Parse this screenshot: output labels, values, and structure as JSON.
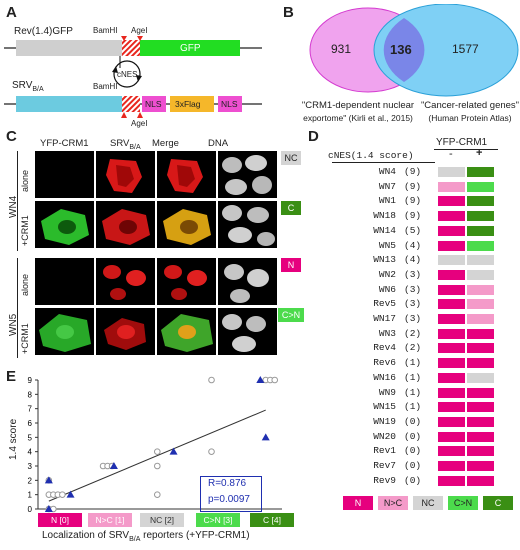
{
  "panels": {
    "A": "A",
    "B": "B",
    "C": "C",
    "D": "D",
    "E": "E"
  },
  "colors": {
    "N": "#e6007e",
    "N_gt_C": "#f49ac9",
    "NC": "#d4d4d4",
    "C_gt_N": "#4cdb4c",
    "C": "#3a8f14",
    "gfp": "#22dd22",
    "nls": "#ee4fd0",
    "flag": "#f5b72a",
    "rev": "#cfcfcf",
    "srv": "#6ccbe0",
    "venn_left": "#f0a3ee",
    "venn_right": "#7fd0f5",
    "venn_overlap": "#7a86e8",
    "fit_marker": "#1f2fb0"
  },
  "panel_a": {
    "construct1": "Rev(1.4)GFP",
    "construct2_main": "SRV",
    "construct2_sub": "B/A",
    "bamhi": "BamHI",
    "agel": "AgeI",
    "gfp": "GFP",
    "cnes": "cNES",
    "nls": "NLS",
    "flag": "3xFlag"
  },
  "panel_b": {
    "left_count": "931",
    "overlap_count": "136",
    "right_count": "1577",
    "left_label": "\"CRM1-dependent nuclear exportome\" (Kirli et al., 2015)",
    "left_label_l1": "\"CRM1-dependent nuclear",
    "left_label_l2": "exportome\" (Kirli et al., 2015)",
    "right_label_l1": "\"Cancer-related genes\"",
    "right_label_l2": "(Human Protein Atlas)"
  },
  "panel_c": {
    "col_headers": [
      "YFP-CRM1",
      "SRV",
      "Merge",
      "DNA"
    ],
    "srv_sub": "B/A",
    "groups": [
      {
        "name": "WN4",
        "rows": [
          {
            "label": "alone",
            "tag": "NC"
          },
          {
            "label": "+CRM1",
            "tag": "C"
          }
        ]
      },
      {
        "name": "WN5",
        "rows": [
          {
            "label": "alone",
            "tag": "N"
          },
          {
            "label": "+CRM1",
            "tag": "C>N"
          }
        ]
      }
    ]
  },
  "panel_d": {
    "header_left": "cNES(1.4 score)",
    "header_right": "YFP-CRM1",
    "minus": "-",
    "plus": "+",
    "rows": [
      {
        "name": "WN4",
        "score": "(9)",
        "minus": "NC",
        "plus": "C"
      },
      {
        "name": "WN7",
        "score": "(9)",
        "minus": "N>C",
        "plus": "C>N"
      },
      {
        "name": "WN1",
        "score": "(9)",
        "minus": "N",
        "plus": "C"
      },
      {
        "name": "WN18",
        "score": "(9)",
        "minus": "N",
        "plus": "C"
      },
      {
        "name": "WN14",
        "score": "(5)",
        "minus": "N",
        "plus": "C"
      },
      {
        "name": "WN5",
        "score": "(4)",
        "minus": "N",
        "plus": "C>N"
      },
      {
        "name": "WN13",
        "score": "(4)",
        "minus": "NC",
        "plus": "NC"
      },
      {
        "name": "WN2",
        "score": "(3)",
        "minus": "N",
        "plus": "NC"
      },
      {
        "name": "WN6",
        "score": "(3)",
        "minus": "N",
        "plus": "N>C"
      },
      {
        "name": "Rev5",
        "score": "(3)",
        "minus": "N",
        "plus": "N>C"
      },
      {
        "name": "WN17",
        "score": "(3)",
        "minus": "N",
        "plus": "N>C"
      },
      {
        "name": "WN3",
        "score": "(2)",
        "minus": "N",
        "plus": "N"
      },
      {
        "name": "Rev4",
        "score": "(2)",
        "minus": "N",
        "plus": "N"
      },
      {
        "name": "Rev6",
        "score": "(1)",
        "minus": "N",
        "plus": "N"
      },
      {
        "name": "WN16",
        "score": "(1)",
        "minus": "N",
        "plus": "NC"
      },
      {
        "name": "WN9",
        "score": "(1)",
        "minus": "N",
        "plus": "N"
      },
      {
        "name": "WN15",
        "score": "(1)",
        "minus": "N",
        "plus": "N"
      },
      {
        "name": "WN19",
        "score": "(0)",
        "minus": "N",
        "plus": "N"
      },
      {
        "name": "WN20",
        "score": "(0)",
        "minus": "N",
        "plus": "N"
      },
      {
        "name": "Rev1",
        "score": "(0)",
        "minus": "N",
        "plus": "N"
      },
      {
        "name": "Rev7",
        "score": "(0)",
        "minus": "N",
        "plus": "N"
      },
      {
        "name": "Rev9",
        "score": "(0)",
        "minus": "N",
        "plus": "N"
      }
    ],
    "legend": [
      "N",
      "N>C",
      "NC",
      "C>N",
      "C"
    ]
  },
  "chart_data": {
    "type": "scatter",
    "ylabel": "1.4 score",
    "xlabel_main": "Localization of SRV",
    "xlabel_sub": "B/A",
    "xlabel_tail": " reporters (+YFP-CRM1)",
    "categories": [
      "N [0]",
      "N>C [1]",
      "NC [2]",
      "C>N [3]",
      "C [4]"
    ],
    "yticks": [
      "0",
      "1",
      "2",
      "3",
      "4",
      "5",
      "6",
      "7",
      "8",
      "9"
    ],
    "ylim": [
      0,
      9
    ],
    "xlim": [
      -0.2,
      4.3
    ],
    "series": [
      {
        "marker": "open-circle",
        "points": [
          [
            0,
            0
          ],
          [
            0,
            0
          ],
          [
            0,
            1
          ],
          [
            0,
            1
          ],
          [
            0,
            1
          ],
          [
            0,
            1
          ],
          [
            0,
            2
          ],
          [
            1,
            3
          ],
          [
            1,
            3
          ],
          [
            1,
            3
          ],
          [
            2,
            1
          ],
          [
            2,
            3
          ],
          [
            2,
            4
          ],
          [
            3,
            9
          ],
          [
            3,
            4
          ],
          [
            4,
            9
          ],
          [
            4,
            9
          ],
          [
            4,
            9
          ]
        ]
      },
      {
        "marker": "filled-triangle",
        "points": [
          [
            0,
            0
          ],
          [
            0,
            2
          ],
          [
            0.4,
            1
          ],
          [
            1.2,
            3
          ],
          [
            2.3,
            4
          ],
          [
            3.9,
            9
          ],
          [
            4.0,
            5
          ]
        ]
      }
    ],
    "fit": {
      "x": [
        0,
        4
      ],
      "y": [
        0.55,
        6.9
      ]
    },
    "stats_r": "R=0.876",
    "stats_p": "p=0.0097"
  }
}
